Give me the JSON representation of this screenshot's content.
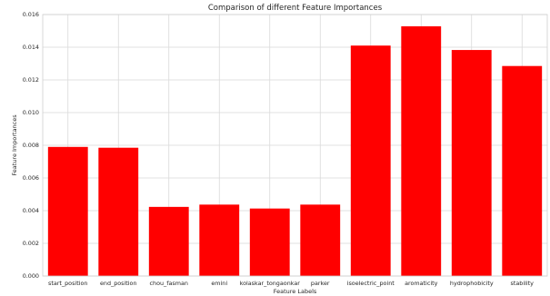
{
  "chart_data": {
    "type": "bar",
    "title": "Comparison of different Feature Importances",
    "xlabel": "Feature Labels",
    "ylabel": "Feature Importances",
    "categories": [
      "start_position",
      "end_position",
      "chou_fasman",
      "emini",
      "kolaskar_tongaonkar",
      "parker",
      "isoelectric_point",
      "aromaticity",
      "hydrophobicity",
      "stability"
    ],
    "values": [
      0.0079,
      0.00785,
      0.00423,
      0.00437,
      0.00413,
      0.00437,
      0.0141,
      0.01528,
      0.01383,
      0.01285
    ],
    "ylim": [
      0,
      0.016
    ],
    "yticks": [
      0.0,
      0.002,
      0.004,
      0.006,
      0.008,
      0.01,
      0.012,
      0.014,
      0.016
    ],
    "ytick_labels": [
      "0.000",
      "0.002",
      "0.004",
      "0.006",
      "0.008",
      "0.010",
      "0.012",
      "0.014",
      "0.016"
    ],
    "bar_color": "#ff0000",
    "grid": true
  }
}
